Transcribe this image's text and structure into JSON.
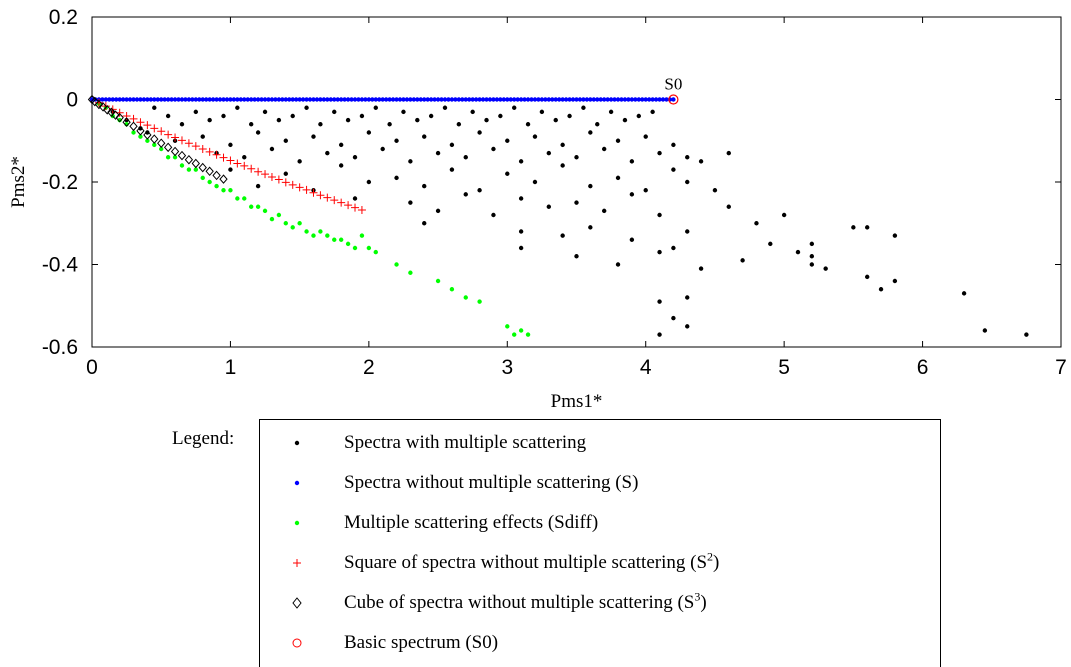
{
  "chart_data": {
    "type": "scatter",
    "title": "",
    "xlabel": "Pms1*",
    "ylabel": "Pms2*",
    "xlim": [
      0,
      7
    ],
    "ylim": [
      -0.6,
      0.2
    ],
    "xticks": [
      "0",
      "1",
      "2",
      "3",
      "4",
      "5",
      "6",
      "7"
    ],
    "yticks": [
      "0.2",
      "0",
      "-0.2",
      "-0.4",
      "-0.6"
    ],
    "grid": false,
    "annotations": [
      {
        "text": "S0",
        "x": 4.2,
        "y": 0.0
      }
    ],
    "series": [
      {
        "name": "Spectra with multiple scattering",
        "marker": "dot",
        "color": "#000000",
        "x": [
          0.15,
          0.25,
          0.35,
          0.45,
          0.55,
          0.65,
          0.75,
          0.85,
          0.95,
          1.05,
          1.15,
          1.25,
          1.35,
          1.45,
          1.55,
          1.65,
          1.75,
          1.85,
          1.95,
          2.05,
          2.15,
          2.25,
          2.35,
          2.45,
          2.55,
          2.65,
          2.75,
          2.85,
          2.95,
          3.05,
          3.15,
          3.25,
          3.35,
          3.45,
          3.55,
          3.65,
          3.75,
          3.85,
          3.95,
          4.05,
          0.4,
          0.6,
          0.8,
          1.0,
          1.2,
          1.4,
          1.6,
          1.8,
          2.0,
          2.2,
          2.4,
          2.6,
          2.8,
          3.0,
          3.2,
          3.4,
          3.6,
          3.8,
          4.0,
          4.2,
          0.9,
          1.1,
          1.3,
          1.5,
          1.7,
          1.9,
          2.1,
          2.3,
          2.5,
          2.7,
          2.9,
          3.1,
          3.3,
          3.5,
          3.7,
          3.9,
          4.1,
          4.3,
          1.0,
          1.4,
          1.8,
          2.2,
          2.6,
          3.0,
          3.4,
          3.8,
          4.2,
          4.4,
          4.6,
          1.2,
          1.6,
          2.0,
          2.4,
          2.8,
          3.2,
          3.6,
          4.0,
          4.3,
          1.9,
          2.3,
          2.7,
          3.1,
          3.5,
          3.9,
          4.5,
          2.5,
          2.9,
          3.3,
          3.7,
          4.1,
          4.6,
          2.4,
          3.1,
          3.4,
          3.6,
          3.9,
          4.3,
          4.8,
          5.0,
          5.2,
          5.6,
          5.8,
          3.1,
          3.5,
          3.8,
          4.1,
          4.2,
          4.4,
          4.7,
          4.9,
          5.1,
          5.2,
          5.3,
          5.5,
          4.1,
          4.3,
          5.2,
          5.6,
          5.7,
          5.8,
          4.1,
          4.2,
          4.3,
          6.3,
          6.45,
          6.75
        ],
        "y": [
          -0.03,
          -0.05,
          -0.07,
          -0.02,
          -0.04,
          -0.06,
          -0.03,
          -0.05,
          -0.04,
          -0.02,
          -0.06,
          -0.03,
          -0.05,
          -0.04,
          -0.02,
          -0.06,
          -0.03,
          -0.05,
          -0.04,
          -0.02,
          -0.06,
          -0.03,
          -0.05,
          -0.04,
          -0.02,
          -0.06,
          -0.03,
          -0.05,
          -0.04,
          -0.02,
          -0.06,
          -0.03,
          -0.05,
          -0.04,
          -0.02,
          -0.06,
          -0.03,
          -0.05,
          -0.04,
          -0.03,
          -0.08,
          -0.1,
          -0.09,
          -0.11,
          -0.08,
          -0.1,
          -0.09,
          -0.11,
          -0.08,
          -0.1,
          -0.09,
          -0.11,
          -0.08,
          -0.1,
          -0.09,
          -0.11,
          -0.08,
          -0.1,
          -0.09,
          -0.11,
          -0.13,
          -0.14,
          -0.12,
          -0.15,
          -0.13,
          -0.14,
          -0.12,
          -0.15,
          -0.13,
          -0.14,
          -0.12,
          -0.15,
          -0.13,
          -0.14,
          -0.12,
          -0.15,
          -0.13,
          -0.14,
          -0.17,
          -0.18,
          -0.16,
          -0.19,
          -0.17,
          -0.18,
          -0.16,
          -0.19,
          -0.17,
          -0.15,
          -0.13,
          -0.21,
          -0.22,
          -0.2,
          -0.21,
          -0.22,
          -0.2,
          -0.21,
          -0.22,
          -0.2,
          -0.24,
          -0.25,
          -0.23,
          -0.24,
          -0.25,
          -0.23,
          -0.22,
          -0.27,
          -0.28,
          -0.26,
          -0.27,
          -0.28,
          -0.26,
          -0.3,
          -0.32,
          -0.33,
          -0.31,
          -0.34,
          -0.32,
          -0.3,
          -0.28,
          -0.35,
          -0.31,
          -0.33,
          -0.36,
          -0.38,
          -0.4,
          -0.37,
          -0.36,
          -0.41,
          -0.39,
          -0.35,
          -0.37,
          -0.38,
          -0.41,
          -0.31,
          -0.49,
          -0.48,
          -0.4,
          -0.43,
          -0.46,
          -0.44,
          -0.57,
          -0.53,
          -0.55,
          -0.47,
          -0.56,
          -0.57
        ]
      },
      {
        "name": "Spectra without multiple scattering (S)",
        "marker": "dot",
        "color": "#0000ff",
        "x_range": [
          0.0,
          4.2
        ],
        "y": 0.0
      },
      {
        "name": "Multiple scattering effects (Sdiff)",
        "marker": "dot",
        "color": "#00ff00",
        "x": [
          0.05,
          0.1,
          0.15,
          0.2,
          0.25,
          0.3,
          0.35,
          0.4,
          0.45,
          0.5,
          0.55,
          0.6,
          0.65,
          0.7,
          0.75,
          0.8,
          0.85,
          0.9,
          0.95,
          1.0,
          1.05,
          1.1,
          1.15,
          1.2,
          1.25,
          1.3,
          1.35,
          1.4,
          1.45,
          1.5,
          1.55,
          1.6,
          1.65,
          1.7,
          1.75,
          1.8,
          1.85,
          1.9,
          1.95,
          2.0,
          2.05,
          2.2,
          2.3,
          2.5,
          2.6,
          2.7,
          2.8,
          3.0,
          3.05,
          3.1,
          3.15
        ],
        "y": [
          -0.01,
          -0.02,
          -0.04,
          -0.05,
          -0.06,
          -0.08,
          -0.09,
          -0.1,
          -0.11,
          -0.12,
          -0.14,
          -0.14,
          -0.16,
          -0.17,
          -0.17,
          -0.19,
          -0.2,
          -0.21,
          -0.22,
          -0.22,
          -0.24,
          -0.24,
          -0.26,
          -0.26,
          -0.27,
          -0.29,
          -0.28,
          -0.3,
          -0.31,
          -0.3,
          -0.32,
          -0.33,
          -0.32,
          -0.33,
          -0.34,
          -0.34,
          -0.35,
          -0.36,
          -0.33,
          -0.36,
          -0.37,
          -0.4,
          -0.42,
          -0.44,
          -0.46,
          -0.48,
          -0.49,
          -0.55,
          -0.57,
          -0.56,
          -0.57
        ]
      },
      {
        "name": "Square of spectra without multiple scattering (S^2)",
        "marker": "plus",
        "color": "#ff0000",
        "x": [
          0.05,
          0.1,
          0.15,
          0.2,
          0.25,
          0.3,
          0.35,
          0.4,
          0.45,
          0.5,
          0.55,
          0.6,
          0.65,
          0.7,
          0.75,
          0.8,
          0.85,
          0.9,
          0.95,
          1.0,
          1.05,
          1.1,
          1.15,
          1.2,
          1.25,
          1.3,
          1.35,
          1.4,
          1.45,
          1.5,
          1.55,
          1.6,
          1.65,
          1.7,
          1.75,
          1.8,
          1.85,
          1.9,
          1.95
        ],
        "y": [
          -0.008,
          -0.016,
          -0.024,
          -0.032,
          -0.04,
          -0.047,
          -0.055,
          -0.062,
          -0.07,
          -0.077,
          -0.085,
          -0.092,
          -0.099,
          -0.106,
          -0.113,
          -0.12,
          -0.127,
          -0.134,
          -0.141,
          -0.148,
          -0.155,
          -0.161,
          -0.168,
          -0.175,
          -0.181,
          -0.188,
          -0.194,
          -0.201,
          -0.207,
          -0.213,
          -0.219,
          -0.226,
          -0.232,
          -0.238,
          -0.244,
          -0.25,
          -0.256,
          -0.262,
          -0.268
        ]
      },
      {
        "name": "Cube of spectra without multiple scattering (S^3)",
        "marker": "diamond",
        "color": "#000000",
        "x": [
          0.0,
          0.02,
          0.05,
          0.08,
          0.11,
          0.14,
          0.17,
          0.2,
          0.25,
          0.3,
          0.35,
          0.4,
          0.45,
          0.5,
          0.55,
          0.6,
          0.65,
          0.7,
          0.75,
          0.8,
          0.85,
          0.9,
          0.95
        ],
        "y": [
          0.0,
          -0.005,
          -0.012,
          -0.018,
          -0.025,
          -0.031,
          -0.038,
          -0.044,
          -0.055,
          -0.065,
          -0.076,
          -0.086,
          -0.096,
          -0.106,
          -0.116,
          -0.126,
          -0.136,
          -0.146,
          -0.155,
          -0.165,
          -0.174,
          -0.184,
          -0.193
        ]
      },
      {
        "name": "Basic spectrum (S0)",
        "marker": "circle",
        "color": "#ff0000",
        "x": [
          4.2
        ],
        "y": [
          0.0
        ]
      }
    ]
  },
  "legend": {
    "heading": "Legend:",
    "items": [
      {
        "symbol": "dot",
        "color": "#000000",
        "label": "Spectra with multiple scattering"
      },
      {
        "symbol": "dot",
        "color": "#0000ff",
        "label": "Spectra without multiple scattering (S)"
      },
      {
        "symbol": "dot",
        "color": "#00ff00",
        "label": "Multiple scattering effects (Sdiff)"
      },
      {
        "symbol": "plus",
        "color": "#ff0000",
        "label": "Square of spectra without multiple scattering (S",
        "sup": "2",
        "suffix": ")"
      },
      {
        "symbol": "diamond",
        "color": "#000000",
        "label": "Cube of spectra without multiple scattering (S",
        "sup": "3",
        "suffix": ")"
      },
      {
        "symbol": "circle",
        "color": "#ff0000",
        "label": "Basic spectrum (S0)"
      }
    ]
  }
}
